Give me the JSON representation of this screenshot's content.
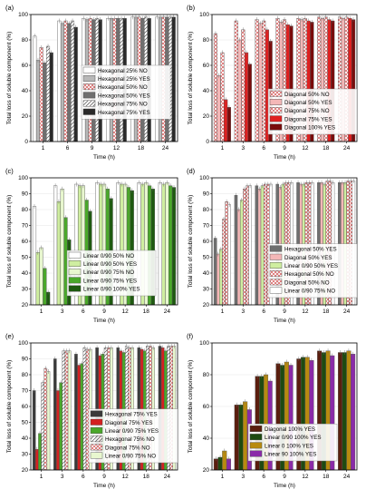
{
  "chart_data": [
    {
      "panel": "(a)",
      "type": "bar",
      "categories": [
        "1",
        "6",
        "9",
        "12",
        "18",
        "24"
      ],
      "ylim": [
        0,
        100
      ],
      "yticks": [
        0,
        20,
        40,
        60,
        80,
        100
      ],
      "xlabel": "Time (h)",
      "ylabel": "Total loss of soluble component (%)",
      "legend_position": "center",
      "series": [
        {
          "name": "Hexagonal 25% NO",
          "color": "#ffffff",
          "pattern": "none",
          "values": [
            83,
            95,
            97,
            97,
            98,
            98
          ]
        },
        {
          "name": "Hexagonal 25% YES",
          "color": "#b8b8b8",
          "pattern": "none",
          "values": [
            64,
            93,
            96,
            97,
            98,
            98
          ]
        },
        {
          "name": "Hexagonal 50% NO",
          "color": "#ffffff",
          "pattern": "cross",
          "values": [
            74,
            95,
            97,
            97,
            98,
            98
          ]
        },
        {
          "name": "Hexagonal 50% YES",
          "color": "#6f6f6f",
          "pattern": "none",
          "values": [
            62,
            93,
            96,
            97,
            97,
            98
          ]
        },
        {
          "name": "Hexagonal 75% NO",
          "color": "#ffffff",
          "pattern": "hatch",
          "values": [
            75,
            95,
            97,
            97,
            98,
            98
          ]
        },
        {
          "name": "Hexagonal 75% YES",
          "color": "#2a2a2a",
          "pattern": "none",
          "values": [
            70,
            90,
            96,
            97,
            97,
            98
          ]
        }
      ]
    },
    {
      "panel": "(b)",
      "type": "bar",
      "categories": [
        "1",
        "3",
        "6",
        "9",
        "12",
        "18",
        "24"
      ],
      "ylim": [
        0,
        100
      ],
      "yticks": [
        0,
        20,
        40,
        60,
        80,
        100
      ],
      "xlabel": "Time (h)",
      "ylabel": "Total loss of soluble component (%)",
      "legend_position": "bottom-right",
      "series": [
        {
          "name": "Diagonal 50% NO",
          "color": "#ffffff",
          "pattern": "cross",
          "values": [
            85,
            95,
            96,
            97,
            97,
            98,
            98
          ]
        },
        {
          "name": "Diagonal 50% YES",
          "color": "#f4b7b7",
          "pattern": "none",
          "values": [
            52,
            80,
            93,
            94,
            96,
            97,
            97
          ]
        },
        {
          "name": "Diagonal 75% NO",
          "color": "#ffffff",
          "pattern": "cross",
          "values": [
            70,
            88,
            95,
            96,
            97,
            98,
            98
          ]
        },
        {
          "name": "Diagonal 75% YES",
          "color": "#e02020",
          "pattern": "none",
          "values": [
            33,
            70,
            88,
            92,
            95,
            96,
            97
          ]
        },
        {
          "name": "Diagonal 100% YES",
          "color": "#7a0b0b",
          "pattern": "none",
          "values": [
            27,
            61,
            79,
            91,
            94,
            95,
            96
          ]
        }
      ]
    },
    {
      "panel": "(c)",
      "type": "bar",
      "categories": [
        "1",
        "3",
        "6",
        "9",
        "12",
        "18",
        "24"
      ],
      "ylim": [
        20,
        100
      ],
      "yticks": [
        20,
        30,
        40,
        50,
        60,
        70,
        80,
        90,
        100
      ],
      "xlabel": "Time (h)",
      "ylabel": "Total loss of soluble component (%)",
      "legend_position": "bottom-center",
      "series": [
        {
          "name": "Linear 0/90 50% NO",
          "color": "#ffffff",
          "pattern": "none",
          "values": [
            82,
            95,
            96,
            97,
            97,
            97,
            97
          ]
        },
        {
          "name": "Linear 0/90 50% YES",
          "color": "#cfeea0",
          "pattern": "none",
          "values": [
            53,
            85,
            95,
            96,
            96,
            96,
            96
          ]
        },
        {
          "name": "Linear 0/90 75% NO",
          "color": "#e8f7cf",
          "pattern": "none",
          "values": [
            56,
            93,
            95,
            96,
            96,
            97,
            97
          ]
        },
        {
          "name": "Linear 0/90 75% YES",
          "color": "#4aa82a",
          "pattern": "none",
          "values": [
            43,
            75,
            86,
            93,
            94,
            95,
            95
          ]
        },
        {
          "name": "Linear 0/90 100% YES",
          "color": "#1e5a10",
          "pattern": "none",
          "values": [
            28,
            61,
            79,
            87,
            92,
            93,
            94
          ]
        }
      ]
    },
    {
      "panel": "(d)",
      "type": "bar",
      "categories": [
        "1",
        "3",
        "6",
        "9",
        "12",
        "18",
        "24"
      ],
      "ylim": [
        20,
        100
      ],
      "yticks": [
        20,
        30,
        40,
        50,
        60,
        70,
        80,
        90,
        100
      ],
      "xlabel": "Time (h)",
      "ylabel": "Total loss of soluble component (%)",
      "legend_position": "bottom-right",
      "series": [
        {
          "name": "Hexagonal 50% YES",
          "color": "#6f6f6f",
          "pattern": "none",
          "values": [
            62,
            89,
            95,
            96,
            97,
            97,
            97
          ]
        },
        {
          "name": "Diagonal 50% YES",
          "color": "#f4b7b7",
          "pattern": "none",
          "values": [
            52,
            80,
            93,
            94,
            96,
            97,
            97
          ]
        },
        {
          "name": "Linear 0/90 50% YES",
          "color": "#cfeea0",
          "pattern": "none",
          "values": [
            55,
            86,
            95,
            96,
            96,
            96,
            97
          ]
        },
        {
          "name": "Hexagonal 50% NO",
          "color": "#ffffff",
          "pattern": "cross",
          "values": [
            74,
            93,
            96,
            97,
            97,
            98,
            98
          ]
        },
        {
          "name": "Diagonal 50% NO",
          "color": "#ffffff",
          "pattern": "cross",
          "values": [
            85,
            95,
            96,
            97,
            97,
            98,
            98
          ]
        },
        {
          "name": "Linear 0/90 75% NO",
          "color": "#ffffff",
          "pattern": "none",
          "values": [
            83,
            95,
            96,
            97,
            97,
            97,
            98
          ]
        }
      ]
    },
    {
      "panel": "(e)",
      "type": "bar",
      "categories": [
        "1",
        "3",
        "6",
        "9",
        "12",
        "18",
        "24"
      ],
      "ylim": [
        20,
        100
      ],
      "yticks": [
        20,
        30,
        40,
        50,
        60,
        70,
        80,
        90,
        100
      ],
      "xlabel": "Time (h)",
      "ylabel": "Total loss of soluble component (%)",
      "legend_position": "bottom-right",
      "series": [
        {
          "name": "Hexagonal 75% YES",
          "color": "#3a3a3a",
          "pattern": "none",
          "values": [
            70,
            90,
            93,
            97,
            97,
            97,
            98
          ]
        },
        {
          "name": "Diagonal 75% YES",
          "color": "#d42020",
          "pattern": "none",
          "values": [
            33,
            70,
            86,
            92,
            95,
            96,
            97
          ]
        },
        {
          "name": "Linear 0/90 75% YES",
          "color": "#4aa82a",
          "pattern": "none",
          "values": [
            43,
            75,
            87,
            93,
            94,
            95,
            95
          ]
        },
        {
          "name": "Hexagonal 75% NO",
          "color": "#ffffff",
          "pattern": "hatch",
          "values": [
            75,
            95,
            97,
            97,
            98,
            98,
            98
          ]
        },
        {
          "name": "Diagonal 75% NO",
          "color": "#ffffff",
          "pattern": "cross",
          "values": [
            84,
            95,
            96,
            97,
            97,
            98,
            98
          ]
        },
        {
          "name": "Linear 0/90 75% NO",
          "color": "#e8f7cf",
          "pattern": "none",
          "values": [
            82,
            95,
            96,
            97,
            97,
            97,
            98
          ]
        }
      ]
    },
    {
      "panel": "(f)",
      "type": "bar",
      "categories": [
        "1",
        "3",
        "6",
        "9",
        "12",
        "18",
        "24"
      ],
      "ylim": [
        20,
        100
      ],
      "yticks": [
        20,
        40,
        60,
        80,
        100
      ],
      "xlabel": "Time (h)",
      "ylabel": "Total loss of soluble component (%)",
      "legend_position": "bottom-center",
      "series": [
        {
          "name": "Diagonal 100% YES",
          "color": "#5a1e0e",
          "pattern": "none",
          "values": [
            27,
            61,
            79,
            87,
            90,
            95,
            94
          ]
        },
        {
          "name": "Linear 0/90 100% YES",
          "color": "#1e4a10",
          "pattern": "none",
          "values": [
            28,
            61,
            79,
            86,
            91,
            94,
            94
          ]
        },
        {
          "name": "Linear 0 100% YES",
          "color": "#b88a10",
          "pattern": "none",
          "values": [
            32,
            63,
            80,
            88,
            91,
            95,
            95
          ]
        },
        {
          "name": "Linear 90 100% YES",
          "color": "#8a2aa8",
          "pattern": "none",
          "values": [
            27,
            58,
            76,
            86,
            89,
            92,
            93
          ]
        }
      ]
    }
  ]
}
